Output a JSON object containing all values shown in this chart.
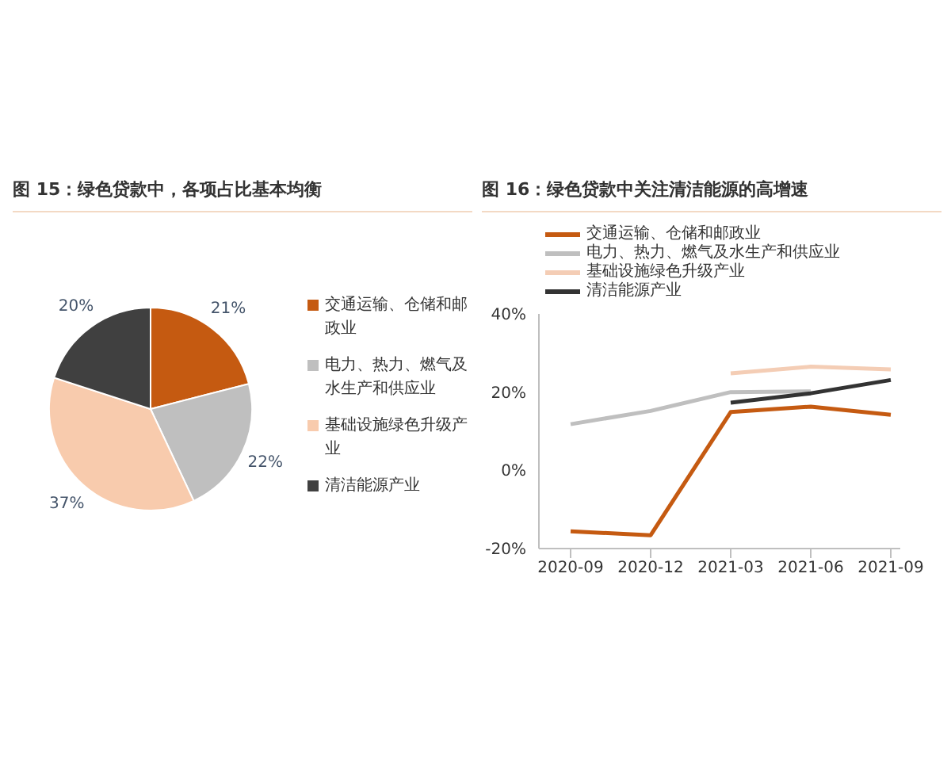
{
  "chart_data": [
    {
      "type": "pie",
      "title": "图 15：绿色贷款中，各项占比基本均衡",
      "categories": [
        "交通运输、仓储和邮政业",
        "电力、热力、燃气及水生产和供应业",
        "基础设施绿色升级产业",
        "清洁能源产业"
      ],
      "values": [
        21,
        22,
        37,
        20
      ],
      "colors": [
        "#c55a11",
        "#bfbfbf",
        "#f8cbad",
        "#404040"
      ],
      "value_labels": [
        "21%",
        "22%",
        "37%",
        "20%"
      ],
      "legend": "right"
    },
    {
      "type": "line",
      "title": "图 16：绿色贷款中关注清洁能源的高增速",
      "categories": [
        "2020-09",
        "2020-12",
        "2021-03",
        "2021-06",
        "2021-09"
      ],
      "series": [
        {
          "name": "交通运输、仓储和邮政业",
          "color": "#c55a11",
          "values": [
            -15.6,
            -16.6,
            14.9,
            16.3,
            14.2
          ]
        },
        {
          "name": "电力、热力、燃气及水生产和供应业",
          "color": "#bfbfbf",
          "values": [
            11.8,
            15.2,
            20,
            20.2,
            null
          ]
        },
        {
          "name": "基础设施绿色升级产业",
          "color": "#f4cdb5",
          "values": [
            null,
            null,
            24.8,
            26.5,
            25.8
          ]
        },
        {
          "name": "清洁能源产业",
          "color": "#333333",
          "values": [
            null,
            null,
            17.3,
            19.7,
            23.1
          ]
        }
      ],
      "ylim": [
        -20,
        40
      ],
      "yticks": [
        {
          "value": -20,
          "label": "-20%"
        },
        {
          "value": 0,
          "label": "0%"
        },
        {
          "value": 20,
          "label": "20%"
        },
        {
          "value": 40,
          "label": "40%"
        }
      ],
      "legend": "top",
      "marker": "none",
      "grid": false
    }
  ]
}
